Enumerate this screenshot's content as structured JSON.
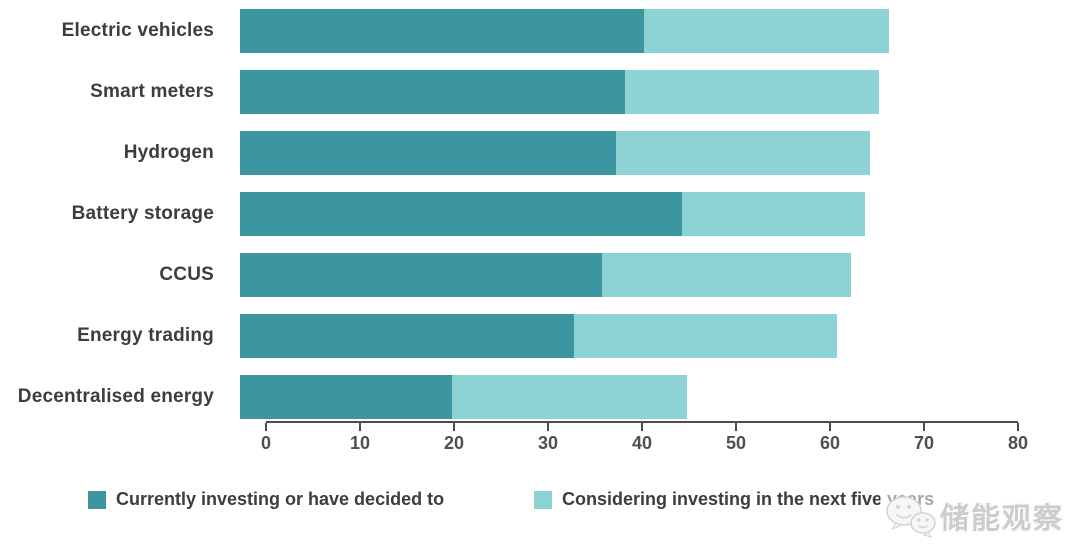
{
  "chart_data": {
    "type": "bar",
    "orientation": "horizontal",
    "stacked": true,
    "title": "",
    "xlabel": "",
    "ylabel": "",
    "xlim": [
      0,
      80
    ],
    "xticks": [
      0,
      10,
      20,
      30,
      40,
      50,
      60,
      70,
      80
    ],
    "grid": false,
    "legend_position": "bottom",
    "categories": [
      "Electric vehicles",
      "Smart meters",
      "Hydrogen",
      "Battery storage",
      "CCUS",
      "Energy trading",
      "Decentralised energy"
    ],
    "series": [
      {
        "name": "Currently investing or have decided to",
        "color": "#3C96A1",
        "values": [
          43,
          41,
          40,
          47,
          38.5,
          35.5,
          22.5
        ]
      },
      {
        "name": "Considering investing in the next five years",
        "color": "#8DD3D3",
        "values": [
          26,
          27,
          27,
          19.5,
          26.5,
          28,
          25
        ]
      }
    ],
    "totals": [
      69,
      68,
      67,
      66.5,
      65,
      63.5,
      47.5
    ]
  },
  "watermark": {
    "text": "储能观察",
    "icon": "wechat-logo"
  }
}
